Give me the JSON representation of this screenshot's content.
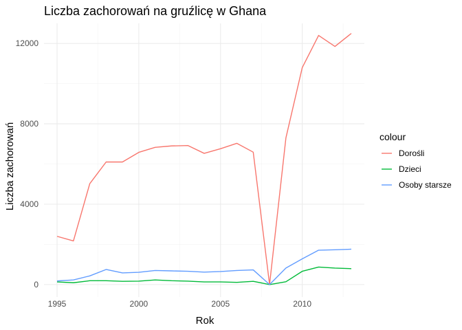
{
  "chart_data": {
    "type": "line",
    "title": "Liczba zachorowań na gruźlicę w Ghana",
    "xlabel": "Rok",
    "ylabel": "Liczba zachorowań",
    "xlim": [
      1994.2,
      2013.8
    ],
    "ylim": [
      -620,
      13000
    ],
    "x_ticks": [
      1995,
      2000,
      2005,
      2010
    ],
    "x_minor_ticks": [
      1997.5,
      2002.5,
      2007.5,
      2012.5
    ],
    "y_ticks": [
      0,
      4000,
      8000,
      12000
    ],
    "y_minor_ticks": [
      2000,
      6000,
      10000
    ],
    "grid": true,
    "legend": {
      "title": "colour",
      "placement": "right"
    },
    "x": [
      1995,
      1996,
      1997,
      1998,
      1999,
      2000,
      2001,
      2002,
      2003,
      2004,
      2005,
      2006,
      2007,
      2008,
      2009,
      2010,
      2011,
      2012,
      2013
    ],
    "series": [
      {
        "name": "Dorośli",
        "color": "#F8766D",
        "values": [
          2400,
          2170,
          5020,
          6100,
          6100,
          6580,
          6830,
          6900,
          6920,
          6530,
          6760,
          7030,
          6590,
          0,
          7300,
          10800,
          12400,
          11850,
          12500
        ]
      },
      {
        "name": "Dzieci",
        "color": "#00BA38",
        "values": [
          130,
          90,
          190,
          190,
          160,
          170,
          230,
          190,
          170,
          130,
          130,
          110,
          160,
          0,
          140,
          660,
          870,
          820,
          790
        ]
      },
      {
        "name": "Osoby starsze",
        "color": "#619CFF",
        "values": [
          180,
          230,
          430,
          750,
          580,
          610,
          700,
          680,
          660,
          620,
          650,
          700,
          730,
          0,
          820,
          1280,
          1710,
          1730,
          1760
        ]
      }
    ]
  }
}
